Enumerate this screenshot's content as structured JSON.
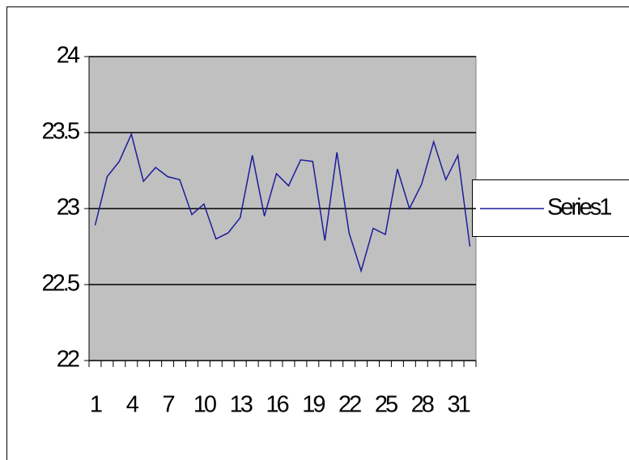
{
  "chart_data": {
    "type": "line",
    "categories": [
      1,
      null,
      null,
      4,
      null,
      null,
      7,
      null,
      null,
      10,
      null,
      null,
      13,
      null,
      null,
      16,
      null,
      null,
      19,
      null,
      null,
      22,
      null,
      null,
      25,
      null,
      null,
      28,
      null,
      null,
      31,
      null
    ],
    "series": [
      {
        "name": "Series1",
        "color": "#1c1c9c",
        "values": [
          22.89,
          23.21,
          23.31,
          23.49,
          23.18,
          23.27,
          23.21,
          23.19,
          22.96,
          23.03,
          22.8,
          22.84,
          22.94,
          23.35,
          22.95,
          23.23,
          23.15,
          23.32,
          23.31,
          22.79,
          23.37,
          22.84,
          22.59,
          22.87,
          22.83,
          23.26,
          23.0,
          23.16,
          23.44,
          23.19,
          23.35,
          22.75
        ]
      }
    ],
    "ylim": [
      22,
      24
    ],
    "yticks": [
      22,
      22.5,
      23,
      23.5,
      24
    ],
    "grid": true,
    "legend": "right"
  }
}
